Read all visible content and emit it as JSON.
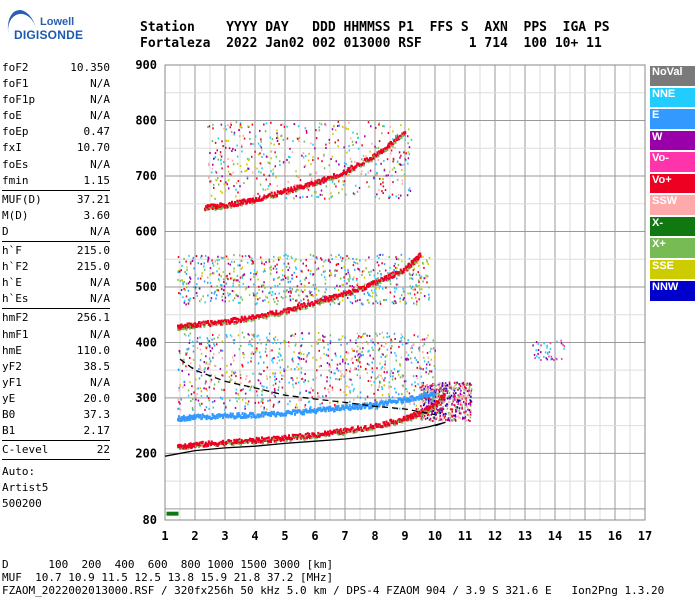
{
  "logo": {
    "company": "Lowell",
    "product": "DIGISONDE"
  },
  "header": {
    "line1": "Station    YYYY DAY   DDD HHMMSS P1  FFS S  AXN  PPS  IGA PS",
    "line2": "Fortaleza  2022 Jan02 002 013000 RSF      1 714  100 10+ 11"
  },
  "params": [
    [
      [
        "foF2",
        "10.350"
      ],
      [
        "foF1",
        "N/A"
      ],
      [
        "foF1p",
        "N/A"
      ],
      [
        "foE",
        "N/A"
      ],
      [
        "foEp",
        "0.47"
      ],
      [
        "fxI",
        "10.70"
      ],
      [
        "foEs",
        "N/A"
      ],
      [
        "fmin",
        "1.15"
      ]
    ],
    [
      [
        "MUF(D)",
        "37.21"
      ],
      [
        "M(D)",
        "3.60"
      ],
      [
        "D",
        "N/A"
      ]
    ],
    [
      [
        "h`F",
        "215.0"
      ],
      [
        "h`F2",
        "215.0"
      ],
      [
        "h`E",
        "N/A"
      ],
      [
        "h`Es",
        "N/A"
      ]
    ],
    [
      [
        "hmF2",
        "256.1"
      ],
      [
        "hmF1",
        "N/A"
      ],
      [
        "hmE",
        "110.0"
      ],
      [
        "yF2",
        "38.5"
      ],
      [
        "yF1",
        "N/A"
      ],
      [
        "yE",
        "20.0"
      ],
      [
        "B0",
        "37.3"
      ],
      [
        "B1",
        "2.17"
      ]
    ],
    [
      [
        "C-level",
        "22"
      ]
    ]
  ],
  "auto": [
    "Auto:",
    "Artist5",
    "500200"
  ],
  "legend": [
    {
      "label": "NoVal",
      "color": "#7a7a7a"
    },
    {
      "label": "NNE",
      "color": "#22ccff"
    },
    {
      "label": "E",
      "color": "#3399ff"
    },
    {
      "label": "W",
      "color": "#9900aa"
    },
    {
      "label": "Vo-",
      "color": "#ff33aa"
    },
    {
      "label": "Vo+",
      "color": "#ee0022"
    },
    {
      "label": "SSW",
      "color": "#ffaaaa"
    },
    {
      "label": "X-",
      "color": "#117711"
    },
    {
      "label": "X+",
      "color": "#77bb55"
    },
    {
      "label": "SSE",
      "color": "#cccc00"
    },
    {
      "label": "NNW",
      "color": "#0000cc"
    }
  ],
  "footer": {
    "line1": "D      100  200  400  600  800 1000 1500 3000 [km]",
    "line2": "MUF  10.7 10.9 11.5 12.5 13.8 15.9 21.8 37.2 [MHz]",
    "line3": "FZAOM_2022002013000.RSF / 320fx256h 50 kHz 5.0 km / DPS-4 FZAOM 904 / 3.9 S 321.6 E   Ion2Png 1.3.20"
  },
  "chart_data": {
    "type": "scatter",
    "xlim": [
      1,
      17
    ],
    "ylim": [
      80,
      900
    ],
    "xticks": [
      1,
      2,
      3,
      4,
      5,
      6,
      7,
      8,
      9,
      10,
      11,
      12,
      13,
      14,
      15,
      16,
      17
    ],
    "yticks": [
      80,
      200,
      300,
      400,
      500,
      600,
      700,
      800,
      900
    ],
    "grid": true,
    "traces": [
      {
        "name": "F2 O-trace 1st hop",
        "color": "#ee0022",
        "x": [
          1.4,
          2,
          3,
          4,
          5,
          6,
          7,
          8,
          9,
          9.5,
          10,
          10.3
        ],
        "y": [
          215,
          218,
          222,
          226,
          230,
          236,
          243,
          252,
          265,
          275,
          290,
          310
        ]
      },
      {
        "name": "F2 O-trace 2nd hop",
        "color": "#ee0022",
        "x": [
          1.4,
          2,
          3,
          4,
          5,
          6,
          7,
          8,
          9,
          9.5
        ],
        "y": [
          430,
          434,
          440,
          448,
          460,
          475,
          490,
          510,
          535,
          560
        ]
      },
      {
        "name": "F2 O-trace 3rd hop",
        "color": "#ee0022",
        "x": [
          2.3,
          3,
          4,
          5,
          6,
          7,
          8,
          9
        ],
        "y": [
          645,
          650,
          660,
          675,
          690,
          710,
          740,
          780
        ]
      },
      {
        "name": "E-region echoes",
        "color": "#3399ff",
        "x": [
          1.4,
          2,
          3,
          4,
          5,
          6,
          7,
          8,
          9,
          10
        ],
        "y": [
          265,
          268,
          270,
          272,
          275,
          280,
          285,
          290,
          300,
          310
        ]
      }
    ],
    "profile_lines": [
      {
        "name": "true-height profile",
        "style": "solid",
        "x": [
          1.0,
          2,
          3,
          4,
          5,
          6,
          7,
          8,
          9,
          9.8,
          10.35,
          10.0
        ],
        "y": [
          195,
          205,
          210,
          213,
          218,
          222,
          226,
          232,
          240,
          248,
          256,
          250
        ]
      },
      {
        "name": "MUF curve",
        "style": "dashed",
        "x": [
          1.5,
          2,
          3,
          4,
          5,
          6,
          7,
          8,
          9,
          10
        ],
        "y": [
          370,
          350,
          330,
          318,
          305,
          298,
          292,
          285,
          280,
          270
        ]
      }
    ]
  }
}
